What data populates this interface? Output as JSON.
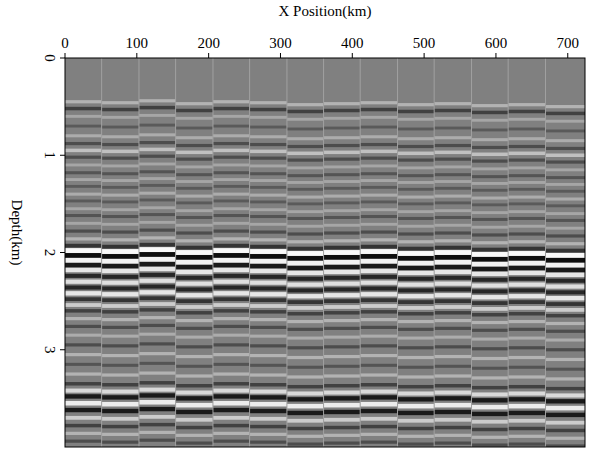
{
  "chart_data": {
    "type": "seismic",
    "x_label": "X Position(km)",
    "y_label": "Depth(km)",
    "xlim": [
      0,
      724
    ],
    "ylim": [
      0,
      4
    ],
    "xticks": [
      0,
      100,
      200,
      300,
      400,
      500,
      600,
      700
    ],
    "yticks": [
      0,
      1,
      2,
      3
    ],
    "reflectors": {
      "depth": [
        0.45,
        0.52,
        0.6,
        0.7,
        0.8,
        0.88,
        0.95,
        1.02,
        1.1,
        1.18,
        1.25,
        1.32,
        1.4,
        1.47,
        1.55,
        1.62,
        1.7,
        1.78,
        1.86,
        1.93,
        1.98,
        2.03,
        2.08,
        2.13,
        2.18,
        2.24,
        2.3,
        2.36,
        2.42,
        2.48,
        2.54,
        2.6,
        2.68,
        2.76,
        2.85,
        2.95,
        3.05,
        3.15,
        3.25,
        3.35,
        3.42,
        3.48,
        3.55,
        3.62,
        3.7,
        3.78,
        3.86,
        3.94
      ],
      "amplitude": [
        0.4,
        -0.5,
        0.3,
        -0.3,
        0.35,
        -0.4,
        0.5,
        -0.4,
        0.3,
        -0.35,
        0.3,
        -0.3,
        0.35,
        -0.3,
        0.3,
        -0.35,
        0.3,
        -0.4,
        0.4,
        -0.6,
        0.95,
        -0.9,
        0.9,
        -0.8,
        0.8,
        -0.7,
        0.75,
        -0.7,
        0.8,
        -0.6,
        0.6,
        -0.5,
        0.4,
        -0.4,
        0.35,
        -0.4,
        0.4,
        -0.35,
        0.4,
        -0.5,
        0.7,
        -0.8,
        0.85,
        -0.8,
        0.6,
        -0.5,
        0.4,
        -0.4
      ]
    },
    "strips": {
      "edges": [
        0,
        51,
        103,
        154,
        206,
        257,
        309,
        360,
        411,
        463,
        514,
        566,
        617,
        669,
        724
      ],
      "shift": [
        0,
        0.01,
        -0.01,
        0.02,
        0,
        0.01,
        0.03,
        0.02,
        0.01,
        0.03,
        0.02,
        0.04,
        0.03,
        0.05
      ]
    }
  }
}
